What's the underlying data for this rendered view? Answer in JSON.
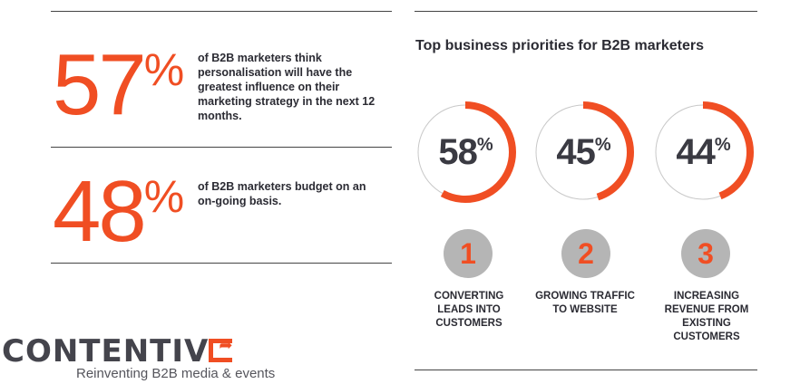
{
  "stats": [
    {
      "value": "57",
      "unit": "%",
      "text": "of B2B marketers think personalisation will have the greatest influence on their marketing strategy in the next 12 months."
    },
    {
      "value": "48",
      "unit": "%",
      "text": "of B2B marketers budget on an on-going basis."
    }
  ],
  "priorities": {
    "title": "Top business priorities for B2B marketers",
    "items": [
      {
        "rank": "1",
        "value": "58",
        "unit": "%",
        "percent": 58,
        "label": "CONVERTING LEADS INTO CUSTOMERS"
      },
      {
        "rank": "2",
        "value": "45",
        "unit": "%",
        "percent": 45,
        "label": "GROWING TRAFFIC TO WEBSITE"
      },
      {
        "rank": "3",
        "value": "44",
        "unit": "%",
        "percent": 44,
        "label": "INCREASING REVENUE FROM EXISTING CUSTOMERS"
      }
    ]
  },
  "logo": {
    "name": "CONTENTIV",
    "tagline": "Reinventing B2B media & events"
  },
  "colors": {
    "accent": "#f04e23",
    "text": "#2b2b33",
    "badge": "#b5b5b5"
  }
}
